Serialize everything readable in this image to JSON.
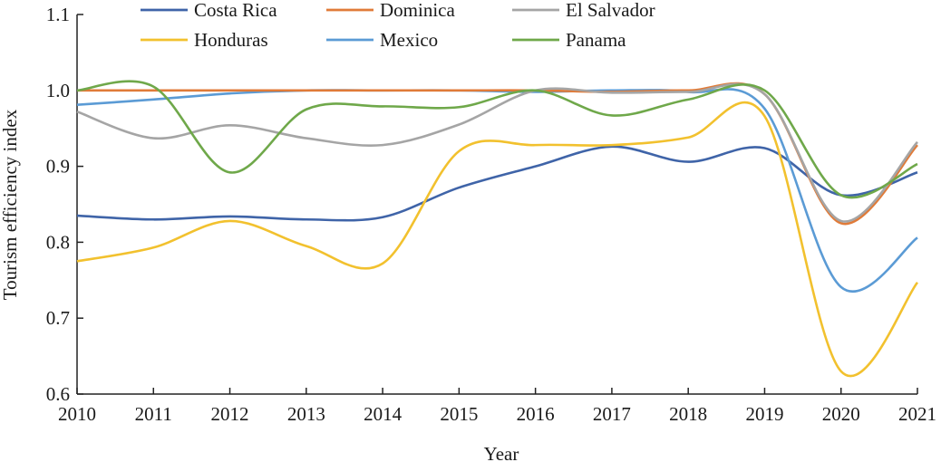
{
  "chart_data": {
    "type": "line",
    "title": "",
    "xlabel": "Year",
    "ylabel": "Tourism efficiency index",
    "x": [
      2010,
      2011,
      2012,
      2013,
      2014,
      2015,
      2016,
      2017,
      2018,
      2019,
      2020,
      2021
    ],
    "xlim": [
      2010,
      2021
    ],
    "ylim": [
      0.6,
      1.1
    ],
    "yticks": [
      "0.6",
      "0.7",
      "0.8",
      "0.9",
      "1.0",
      "1.1"
    ],
    "xticks": [
      "2010",
      "2011",
      "2012",
      "2013",
      "2014",
      "2015",
      "2016",
      "2017",
      "2018",
      "2019",
      "2020",
      "2021"
    ],
    "grid": false,
    "smooth": true,
    "legend_position": "top",
    "series": [
      {
        "name": "Costa Rica",
        "color": "#3f64a8",
        "values": [
          0.835,
          0.83,
          0.834,
          0.83,
          0.833,
          0.872,
          0.9,
          0.926,
          0.906,
          0.924,
          0.862,
          0.892
        ]
      },
      {
        "name": "Dominica",
        "color": "#e07b39",
        "values": [
          1.0,
          1.0,
          1.0,
          1.0,
          1.0,
          1.0,
          1.0,
          0.998,
          1.0,
          0.995,
          0.825,
          0.928
        ]
      },
      {
        "name": "El Salvador",
        "color": "#a5a5a5",
        "values": [
          0.972,
          0.937,
          0.954,
          0.937,
          0.928,
          0.955,
          1.0,
          0.997,
          0.998,
          0.995,
          0.828,
          0.932
        ]
      },
      {
        "name": "Honduras",
        "color": "#f2c12e",
        "values": [
          0.775,
          0.793,
          0.828,
          0.795,
          0.772,
          0.92,
          0.928,
          0.928,
          0.938,
          0.966,
          0.63,
          0.747
        ]
      },
      {
        "name": "Mexico",
        "color": "#5b9bd5",
        "values": [
          0.981,
          0.988,
          0.996,
          1.0,
          1.0,
          1.0,
          0.998,
          1.0,
          0.998,
          0.976,
          0.741,
          0.806
        ]
      },
      {
        "name": "Panama",
        "color": "#6fa84a",
        "values": [
          1.0,
          1.005,
          0.892,
          0.975,
          0.979,
          0.978,
          1.0,
          0.967,
          0.988,
          1.0,
          0.862,
          0.903
        ]
      }
    ]
  }
}
